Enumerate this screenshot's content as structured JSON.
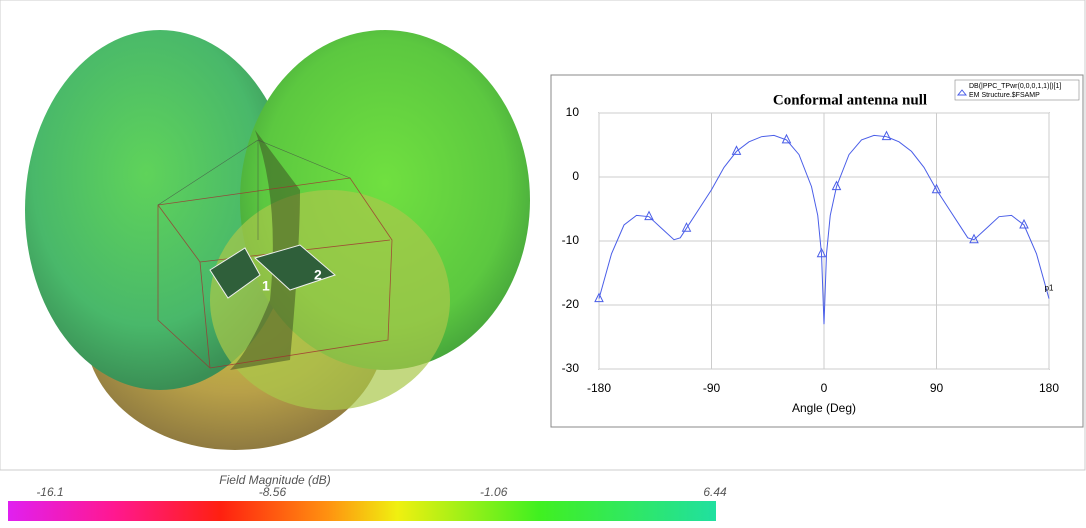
{
  "chart_data": {
    "type": "line",
    "title": "Conformal antenna null",
    "x_label": "Angle (Deg)",
    "x": [
      -180,
      -170,
      -160,
      -150,
      -140,
      -130,
      -120,
      -115,
      -110,
      -100,
      -90,
      -80,
      -70,
      -60,
      -50,
      -40,
      -30,
      -20,
      -10,
      -5,
      -2,
      0,
      2,
      5,
      10,
      20,
      30,
      40,
      50,
      60,
      70,
      80,
      90,
      100,
      110,
      115,
      120,
      130,
      140,
      150,
      160,
      170,
      180
    ],
    "series": [
      {
        "name": "DB(|PPC_TPwr(0,0,0,1,1)|)[1]",
        "color": "#4a5ee8",
        "values": [
          -19,
          -12,
          -7.5,
          -6,
          -6.2,
          -8,
          -9.8,
          -9.5,
          -8,
          -5,
          -2,
          1.5,
          4,
          5.5,
          6.3,
          6.5,
          5.8,
          3.5,
          -1.5,
          -6,
          -12,
          -23,
          -12,
          -6,
          -1.5,
          3.5,
          5.8,
          6.5,
          6.3,
          5.5,
          4,
          1.5,
          -2,
          -5,
          -8,
          -9.5,
          -9.8,
          -8,
          -6.2,
          -6,
          -7.5,
          -12,
          -19
        ]
      }
    ],
    "legend_source": "EM Structure.$FSAMP",
    "marker_label": "p1",
    "xlim": [
      -180,
      180
    ],
    "xticks": [
      -180,
      -90,
      0,
      90,
      180
    ],
    "ylim": [
      -30,
      10
    ],
    "yticks": [
      -30,
      -20,
      -10,
      0,
      10
    ],
    "grid": true
  },
  "colorbar": {
    "title": "Field Magnitude (dB)",
    "ticks": [
      -16.1,
      -8.56,
      -1.06,
      6.44
    ]
  },
  "ports": [
    "1",
    "2"
  ]
}
